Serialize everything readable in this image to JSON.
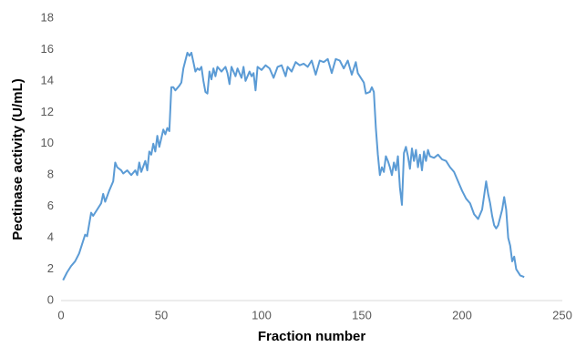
{
  "chart_data": {
    "type": "line",
    "x_label": "Fraction number",
    "y_label": "Pectinase activity (U/mL)",
    "xlim": [
      0,
      250
    ],
    "xticks": [
      0,
      50,
      100,
      150,
      200,
      250
    ],
    "ylim": [
      0,
      18
    ],
    "yticks": [
      0,
      2,
      4,
      6,
      8,
      10,
      12,
      14,
      16,
      18
    ],
    "series": [
      {
        "color": "#5b9bd5",
        "x": [
          1,
          3,
          5,
          7,
          9,
          11,
          12,
          13,
          15,
          16,
          18,
          20,
          21,
          22,
          24,
          26,
          27,
          28,
          30,
          31,
          33,
          35,
          37,
          38,
          39,
          40,
          42,
          43,
          44,
          45,
          46,
          47,
          48,
          49,
          51,
          52,
          53,
          54,
          55,
          56,
          57,
          59,
          60,
          61,
          63,
          64,
          65,
          66,
          67,
          68,
          69,
          70,
          71,
          72,
          73,
          74,
          75,
          76,
          77,
          78,
          80,
          82,
          83,
          84,
          85,
          87,
          88,
          90,
          91,
          92,
          94,
          95,
          96,
          97,
          98,
          100,
          102,
          104,
          106,
          108,
          110,
          112,
          113,
          115,
          117,
          119,
          121,
          123,
          125,
          127,
          129,
          131,
          133,
          135,
          137,
          139,
          141,
          143,
          145,
          147,
          148,
          150,
          151,
          152,
          154,
          155,
          156,
          157,
          158,
          159,
          160,
          161,
          162,
          163,
          164,
          165,
          166,
          167,
          168,
          169,
          170,
          171,
          172,
          173,
          174,
          175,
          176,
          177,
          178,
          179,
          180,
          181,
          182,
          183,
          184,
          186,
          188,
          190,
          192,
          194,
          196,
          198,
          200,
          202,
          204,
          206,
          208,
          210,
          212,
          213,
          214,
          215,
          216,
          217,
          218,
          220,
          221,
          222,
          223,
          224,
          225,
          226,
          227,
          229,
          231
        ],
        "values": [
          1.3,
          1.8,
          2.2,
          2.5,
          3.0,
          3.8,
          4.2,
          4.1,
          5.6,
          5.4,
          5.8,
          6.2,
          6.8,
          6.3,
          7.0,
          7.6,
          8.8,
          8.5,
          8.3,
          8.1,
          8.3,
          8.0,
          8.3,
          8.0,
          8.8,
          8.2,
          8.9,
          8.3,
          9.5,
          9.3,
          10.0,
          9.5,
          10.5,
          9.8,
          10.9,
          10.6,
          11.0,
          10.8,
          13.6,
          13.6,
          13.4,
          13.7,
          13.9,
          14.8,
          15.8,
          15.6,
          15.8,
          15.2,
          14.6,
          14.8,
          14.7,
          14.9,
          14.0,
          13.3,
          13.2,
          14.6,
          14.1,
          14.8,
          14.3,
          14.9,
          14.6,
          14.9,
          14.5,
          13.8,
          14.9,
          14.3,
          14.8,
          14.2,
          14.9,
          14.0,
          14.6,
          14.3,
          14.5,
          13.4,
          14.9,
          14.7,
          15.0,
          14.8,
          14.2,
          14.9,
          15.0,
          14.3,
          14.9,
          14.6,
          15.2,
          15.0,
          15.1,
          14.9,
          15.3,
          14.4,
          15.3,
          15.2,
          15.4,
          14.5,
          15.4,
          15.3,
          14.8,
          15.3,
          14.4,
          15.2,
          14.5,
          14.1,
          13.9,
          13.2,
          13.3,
          13.6,
          13.3,
          11.0,
          9.3,
          8.0,
          8.5,
          8.2,
          9.2,
          8.9,
          8.5,
          8.0,
          8.8,
          8.3,
          9.2,
          7.2,
          6.1,
          9.4,
          9.8,
          9.2,
          8.4,
          9.7,
          8.9,
          9.6,
          8.5,
          9.3,
          8.3,
          9.5,
          8.9,
          9.6,
          9.2,
          9.1,
          9.3,
          9.0,
          8.9,
          8.5,
          8.2,
          7.6,
          7.0,
          6.5,
          6.2,
          5.5,
          5.2,
          5.8,
          7.6,
          6.8,
          6.2,
          5.4,
          4.8,
          4.6,
          4.8,
          5.8,
          6.6,
          5.8,
          4.0,
          3.5,
          2.5,
          2.8,
          2.0,
          1.6,
          1.5
        ]
      }
    ]
  }
}
